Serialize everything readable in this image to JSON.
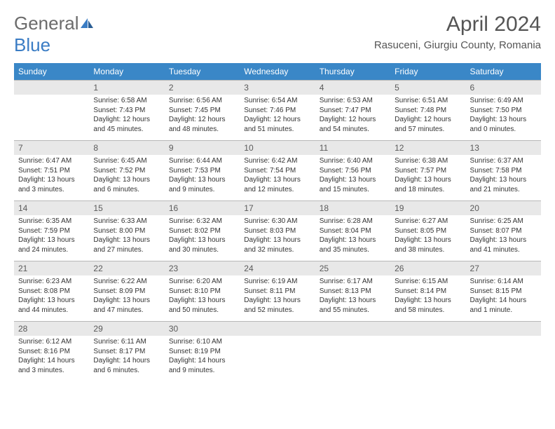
{
  "logo": {
    "text1": "General",
    "text2": "Blue"
  },
  "title": "April 2024",
  "location": "Rasuceni, Giurgiu County, Romania",
  "colors": {
    "header_bg": "#3a87c7",
    "header_text": "#ffffff",
    "daynum_bg": "#e8e8e8",
    "daynum_border": "#b8b8b8",
    "text": "#333333",
    "title_text": "#555555",
    "logo_gray": "#6b6b6b",
    "logo_blue": "#3a7cc4",
    "page_bg": "#ffffff"
  },
  "weekdays": [
    "Sunday",
    "Monday",
    "Tuesday",
    "Wednesday",
    "Thursday",
    "Friday",
    "Saturday"
  ],
  "weeks": [
    [
      null,
      {
        "n": "1",
        "sr": "Sunrise: 6:58 AM",
        "ss": "Sunset: 7:43 PM",
        "dl": "Daylight: 12 hours and 45 minutes."
      },
      {
        "n": "2",
        "sr": "Sunrise: 6:56 AM",
        "ss": "Sunset: 7:45 PM",
        "dl": "Daylight: 12 hours and 48 minutes."
      },
      {
        "n": "3",
        "sr": "Sunrise: 6:54 AM",
        "ss": "Sunset: 7:46 PM",
        "dl": "Daylight: 12 hours and 51 minutes."
      },
      {
        "n": "4",
        "sr": "Sunrise: 6:53 AM",
        "ss": "Sunset: 7:47 PM",
        "dl": "Daylight: 12 hours and 54 minutes."
      },
      {
        "n": "5",
        "sr": "Sunrise: 6:51 AM",
        "ss": "Sunset: 7:48 PM",
        "dl": "Daylight: 12 hours and 57 minutes."
      },
      {
        "n": "6",
        "sr": "Sunrise: 6:49 AM",
        "ss": "Sunset: 7:50 PM",
        "dl": "Daylight: 13 hours and 0 minutes."
      }
    ],
    [
      {
        "n": "7",
        "sr": "Sunrise: 6:47 AM",
        "ss": "Sunset: 7:51 PM",
        "dl": "Daylight: 13 hours and 3 minutes."
      },
      {
        "n": "8",
        "sr": "Sunrise: 6:45 AM",
        "ss": "Sunset: 7:52 PM",
        "dl": "Daylight: 13 hours and 6 minutes."
      },
      {
        "n": "9",
        "sr": "Sunrise: 6:44 AM",
        "ss": "Sunset: 7:53 PM",
        "dl": "Daylight: 13 hours and 9 minutes."
      },
      {
        "n": "10",
        "sr": "Sunrise: 6:42 AM",
        "ss": "Sunset: 7:54 PM",
        "dl": "Daylight: 13 hours and 12 minutes."
      },
      {
        "n": "11",
        "sr": "Sunrise: 6:40 AM",
        "ss": "Sunset: 7:56 PM",
        "dl": "Daylight: 13 hours and 15 minutes."
      },
      {
        "n": "12",
        "sr": "Sunrise: 6:38 AM",
        "ss": "Sunset: 7:57 PM",
        "dl": "Daylight: 13 hours and 18 minutes."
      },
      {
        "n": "13",
        "sr": "Sunrise: 6:37 AM",
        "ss": "Sunset: 7:58 PM",
        "dl": "Daylight: 13 hours and 21 minutes."
      }
    ],
    [
      {
        "n": "14",
        "sr": "Sunrise: 6:35 AM",
        "ss": "Sunset: 7:59 PM",
        "dl": "Daylight: 13 hours and 24 minutes."
      },
      {
        "n": "15",
        "sr": "Sunrise: 6:33 AM",
        "ss": "Sunset: 8:00 PM",
        "dl": "Daylight: 13 hours and 27 minutes."
      },
      {
        "n": "16",
        "sr": "Sunrise: 6:32 AM",
        "ss": "Sunset: 8:02 PM",
        "dl": "Daylight: 13 hours and 30 minutes."
      },
      {
        "n": "17",
        "sr": "Sunrise: 6:30 AM",
        "ss": "Sunset: 8:03 PM",
        "dl": "Daylight: 13 hours and 32 minutes."
      },
      {
        "n": "18",
        "sr": "Sunrise: 6:28 AM",
        "ss": "Sunset: 8:04 PM",
        "dl": "Daylight: 13 hours and 35 minutes."
      },
      {
        "n": "19",
        "sr": "Sunrise: 6:27 AM",
        "ss": "Sunset: 8:05 PM",
        "dl": "Daylight: 13 hours and 38 minutes."
      },
      {
        "n": "20",
        "sr": "Sunrise: 6:25 AM",
        "ss": "Sunset: 8:07 PM",
        "dl": "Daylight: 13 hours and 41 minutes."
      }
    ],
    [
      {
        "n": "21",
        "sr": "Sunrise: 6:23 AM",
        "ss": "Sunset: 8:08 PM",
        "dl": "Daylight: 13 hours and 44 minutes."
      },
      {
        "n": "22",
        "sr": "Sunrise: 6:22 AM",
        "ss": "Sunset: 8:09 PM",
        "dl": "Daylight: 13 hours and 47 minutes."
      },
      {
        "n": "23",
        "sr": "Sunrise: 6:20 AM",
        "ss": "Sunset: 8:10 PM",
        "dl": "Daylight: 13 hours and 50 minutes."
      },
      {
        "n": "24",
        "sr": "Sunrise: 6:19 AM",
        "ss": "Sunset: 8:11 PM",
        "dl": "Daylight: 13 hours and 52 minutes."
      },
      {
        "n": "25",
        "sr": "Sunrise: 6:17 AM",
        "ss": "Sunset: 8:13 PM",
        "dl": "Daylight: 13 hours and 55 minutes."
      },
      {
        "n": "26",
        "sr": "Sunrise: 6:15 AM",
        "ss": "Sunset: 8:14 PM",
        "dl": "Daylight: 13 hours and 58 minutes."
      },
      {
        "n": "27",
        "sr": "Sunrise: 6:14 AM",
        "ss": "Sunset: 8:15 PM",
        "dl": "Daylight: 14 hours and 1 minute."
      }
    ],
    [
      {
        "n": "28",
        "sr": "Sunrise: 6:12 AM",
        "ss": "Sunset: 8:16 PM",
        "dl": "Daylight: 14 hours and 3 minutes."
      },
      {
        "n": "29",
        "sr": "Sunrise: 6:11 AM",
        "ss": "Sunset: 8:17 PM",
        "dl": "Daylight: 14 hours and 6 minutes."
      },
      {
        "n": "30",
        "sr": "Sunrise: 6:10 AM",
        "ss": "Sunset: 8:19 PM",
        "dl": "Daylight: 14 hours and 9 minutes."
      },
      null,
      null,
      null,
      null
    ]
  ]
}
